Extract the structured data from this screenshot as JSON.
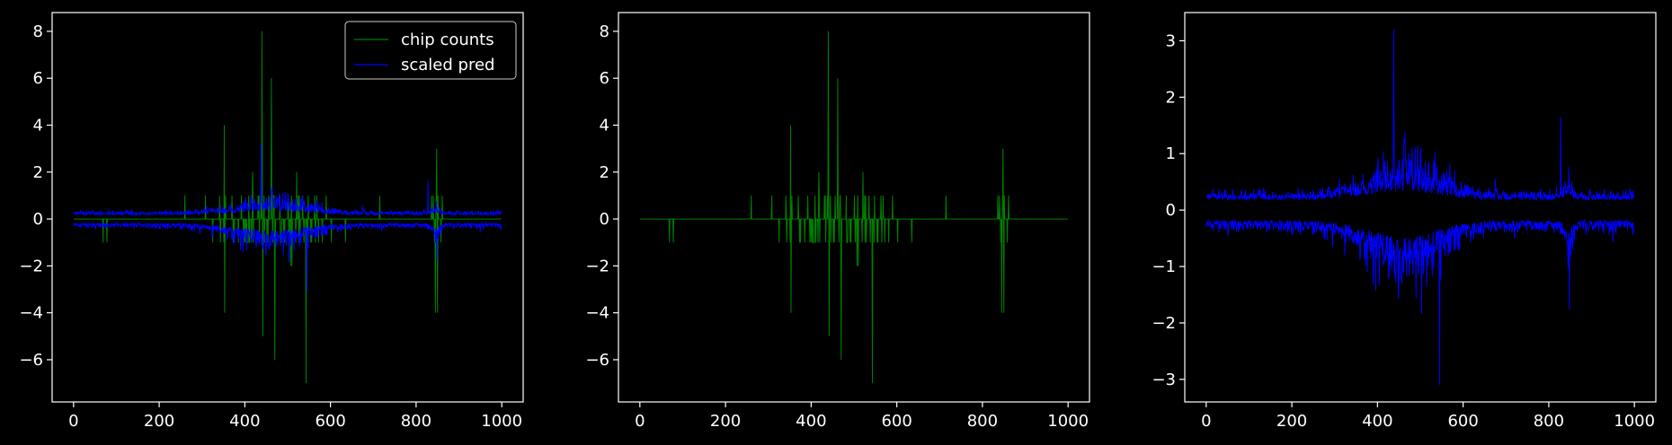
{
  "colors": {
    "background": "#000000",
    "axes": "#ffffff",
    "chip_counts": "#008000",
    "scaled_pred": "#0000ff"
  },
  "chart_data": [
    {
      "type": "line",
      "xlim": [
        -50,
        1050
      ],
      "ylim": [
        -7.8,
        8.8
      ],
      "xticks": [
        0,
        200,
        400,
        600,
        800,
        1000
      ],
      "yticks": [
        -6,
        -4,
        -2,
        0,
        2,
        4,
        6,
        8
      ],
      "x_range": [
        0,
        999
      ],
      "legend": {
        "position": "top-right",
        "entries": [
          "chip counts",
          "scaled pred"
        ]
      },
      "series": [
        {
          "name": "chip counts",
          "color": "#008000",
          "kind": "counts",
          "min": -7,
          "max": 8
        },
        {
          "name": "scaled pred",
          "color": "#0000ff",
          "kind": "pred",
          "min": -3.1,
          "max": 3.2
        }
      ],
      "tick_labels": {
        "x": [
          "0",
          "200",
          "400",
          "600",
          "800",
          "1000"
        ],
        "y": [
          "−6",
          "−4",
          "−2",
          "0",
          "2",
          "4",
          "6",
          "8"
        ]
      }
    },
    {
      "type": "line",
      "xlim": [
        -50,
        1050
      ],
      "ylim": [
        -7.8,
        8.8
      ],
      "xticks": [
        0,
        200,
        400,
        600,
        800,
        1000
      ],
      "yticks": [
        -6,
        -4,
        -2,
        0,
        2,
        4,
        6,
        8
      ],
      "x_range": [
        0,
        999
      ],
      "series": [
        {
          "color": "#008000",
          "kind": "counts",
          "min": -7,
          "max": 8
        }
      ],
      "tick_labels": {
        "x": [
          "0",
          "200",
          "400",
          "600",
          "800",
          "1000"
        ],
        "y": [
          "−6",
          "−4",
          "−2",
          "0",
          "2",
          "4",
          "6",
          "8"
        ]
      }
    },
    {
      "type": "line",
      "xlim": [
        -50,
        1050
      ],
      "ylim": [
        -3.4,
        3.5
      ],
      "xticks": [
        0,
        200,
        400,
        600,
        800,
        1000
      ],
      "yticks": [
        -3,
        -2,
        -1,
        0,
        1,
        2,
        3
      ],
      "x_range": [
        0,
        999
      ],
      "series": [
        {
          "color": "#0000ff",
          "kind": "pred",
          "min": -3.1,
          "max": 3.2
        }
      ],
      "tick_labels": {
        "x": [
          "0",
          "200",
          "400",
          "600",
          "800",
          "1000"
        ],
        "y": [
          "−3",
          "−2",
          "−1",
          "0",
          "1",
          "2",
          "3"
        ]
      }
    }
  ]
}
